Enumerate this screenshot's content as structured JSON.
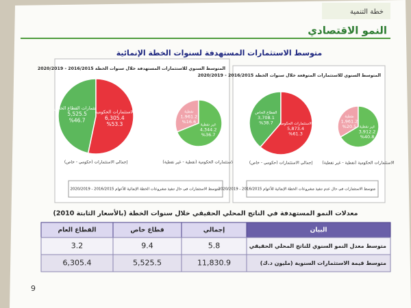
{
  "header": {
    "tag": "خطة التنمية",
    "title": "النمو الاقتصادي"
  },
  "section_title": "متوسط الاستثمارات المستهدفة لسنوات الخطة الإنمائية",
  "panels": [
    {
      "title": "المتوسط السنوي للاستثمارات المستهدفة خلال سنوات الخطة 2016/2015 - 2020/2019",
      "pie": {
        "labels": [
          "استثمارات القطاع الخاص",
          "الاستثمارات الحكومية"
        ],
        "value_labels": [
          "5,525.5",
          "6,305.4"
        ],
        "shares": [
          46.7,
          53.3
        ],
        "share_labels": [
          "%46.7",
          "%53.3"
        ],
        "colors": [
          "#5cb85c",
          "#e8343c"
        ]
      },
      "sub_pie": {
        "labels": [
          "نفطية",
          "غير نفطية"
        ],
        "value_labels": [
          "1,961.2",
          "4,344.2"
        ],
        "shares": [
          16.6,
          36.7
        ],
        "share_labels": [
          "%16.6",
          "%36.7"
        ],
        "colors": [
          "#f0a3ab",
          "#66c05a"
        ]
      },
      "captions": [
        "إجمالي الاستثمارات (حكومي - خاص)",
        "الاستثمارات الحكومية (نفطية - غير نفطية)"
      ],
      "note": "متوسط الاستثمارات في حال تنفيذ مشروعات الخطة الإنمائية للأعوام 2016/2015 - 2020/2019"
    },
    {
      "title": "المتوسط السنوي للاستثمارات المتوقعة خلال سنوات الخطة 2016/2015 - 2020/2019",
      "pie": {
        "labels": [
          "القطاع الخاص",
          "الاستثمارات الحكومية"
        ],
        "value_labels": [
          "3,708.1",
          "5,873.4"
        ],
        "shares": [
          38.7,
          61.3
        ],
        "share_labels": [
          "%38.7",
          "%61.3"
        ],
        "colors": [
          "#5cb85c",
          "#e8343c"
        ]
      },
      "sub_pie": {
        "labels": [
          "نفطية",
          "غير نفطية"
        ],
        "value_labels": [
          "1,961.2",
          "3,912.2"
        ],
        "shares": [
          20.5,
          40.8
        ],
        "share_labels": [
          "%20.5",
          "%40.8"
        ],
        "colors": [
          "#f0a3ab",
          "#66c05a"
        ]
      },
      "captions": [
        "إجمالي الاستثمارات (حكومي - خاص)",
        "الاستثمارات الحكومية (نفطية - غير نفطية)"
      ],
      "note": "متوسط الاستثمارات في حال عدم تنفيذ مشروعات الخطة الإنمائية للأعوام 2016/2015 - 2020/2019"
    }
  ],
  "table": {
    "title": "معدلات النمو المستهدفة في الناتج المحلي الحقيقي خلال سنوات الخطة (بالأسعار الثابتة 2010)",
    "headers": [
      "البيان",
      "إجمالي",
      "قطاع خاص",
      "القطاع العام"
    ],
    "rows": [
      [
        "متوسط معدل النمو السنوي للناتج المحلي الحقيقي",
        "5.8",
        "9.4",
        "3.2"
      ],
      [
        "متوسط قيمة الاستثمارات السنوية (مليون د.ك)",
        "11,830.9",
        "5,525.5",
        "6,305.4"
      ]
    ]
  },
  "page_number": "9"
}
